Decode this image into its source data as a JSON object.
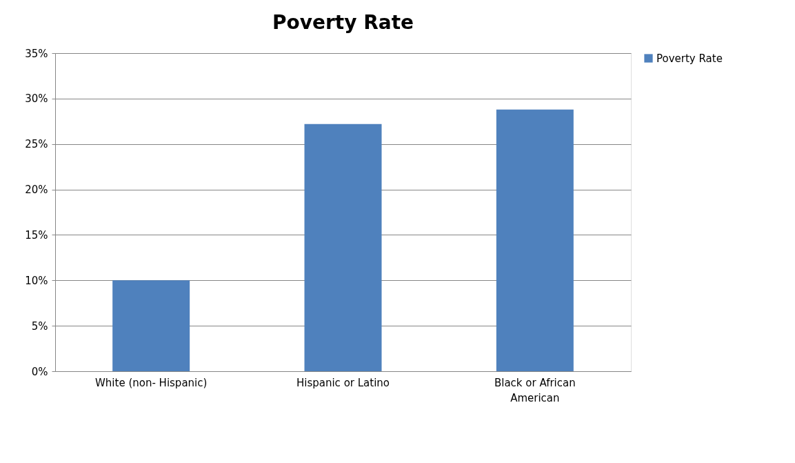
{
  "chart_data": {
    "type": "bar",
    "title": "Poverty Rate",
    "categories": [
      "White (non- Hispanic)",
      "Hispanic or Latino",
      "Black or African American"
    ],
    "series": [
      {
        "name": "Poverty Rate",
        "color": "#4f81bd",
        "values": [
          10,
          27.2,
          28.8
        ]
      }
    ],
    "ylim": [
      0,
      35
    ],
    "yticks": [
      {
        "value": 0,
        "label": "0%"
      },
      {
        "value": 5,
        "label": "5%"
      },
      {
        "value": 10,
        "label": "10%"
      },
      {
        "value": 15,
        "label": "15%"
      },
      {
        "value": 20,
        "label": "20%"
      },
      {
        "value": 25,
        "label": "25%"
      },
      {
        "value": 30,
        "label": "30%"
      },
      {
        "value": 35,
        "label": "35%"
      }
    ],
    "grid": "y",
    "legend": "right"
  }
}
